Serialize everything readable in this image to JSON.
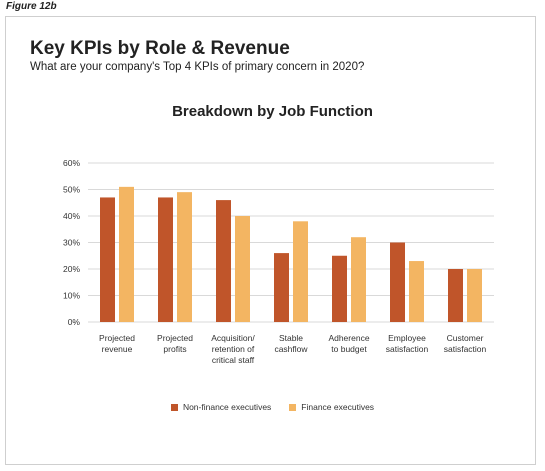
{
  "figure_label": "Figure 12b",
  "title": "Key KPIs by Role & Revenue",
  "subtitle": "What are your company's Top 4 KPIs of primary concern in 2020?",
  "chart_title": "Breakdown by Job Function",
  "colors": {
    "non_finance": "#c0552a",
    "finance": "#f3b562",
    "grid": "#d9d9d9"
  },
  "chart_data": {
    "type": "bar",
    "title": "Breakdown by Job Function",
    "xlabel": "",
    "ylabel": "",
    "ylim": [
      0,
      60
    ],
    "y_ticks": [
      "0%",
      "10%",
      "20%",
      "30%",
      "40%",
      "50%",
      "60%"
    ],
    "grid": true,
    "legend_position": "bottom",
    "categories": [
      [
        "Projected",
        "revenue"
      ],
      [
        "Projected",
        "profits"
      ],
      [
        "Acquisition/",
        "retention of",
        "critical staff"
      ],
      [
        "Stable",
        "cashflow"
      ],
      [
        "Adherence",
        "to budget"
      ],
      [
        "Employee",
        "satisfaction"
      ],
      [
        "Customer",
        "satisfaction"
      ]
    ],
    "series": [
      {
        "name": "Non-finance executives",
        "values": [
          47,
          47,
          46,
          26,
          25,
          30,
          20
        ]
      },
      {
        "name": "Finance executives",
        "values": [
          51,
          49,
          40,
          38,
          32,
          23,
          20
        ]
      }
    ]
  }
}
